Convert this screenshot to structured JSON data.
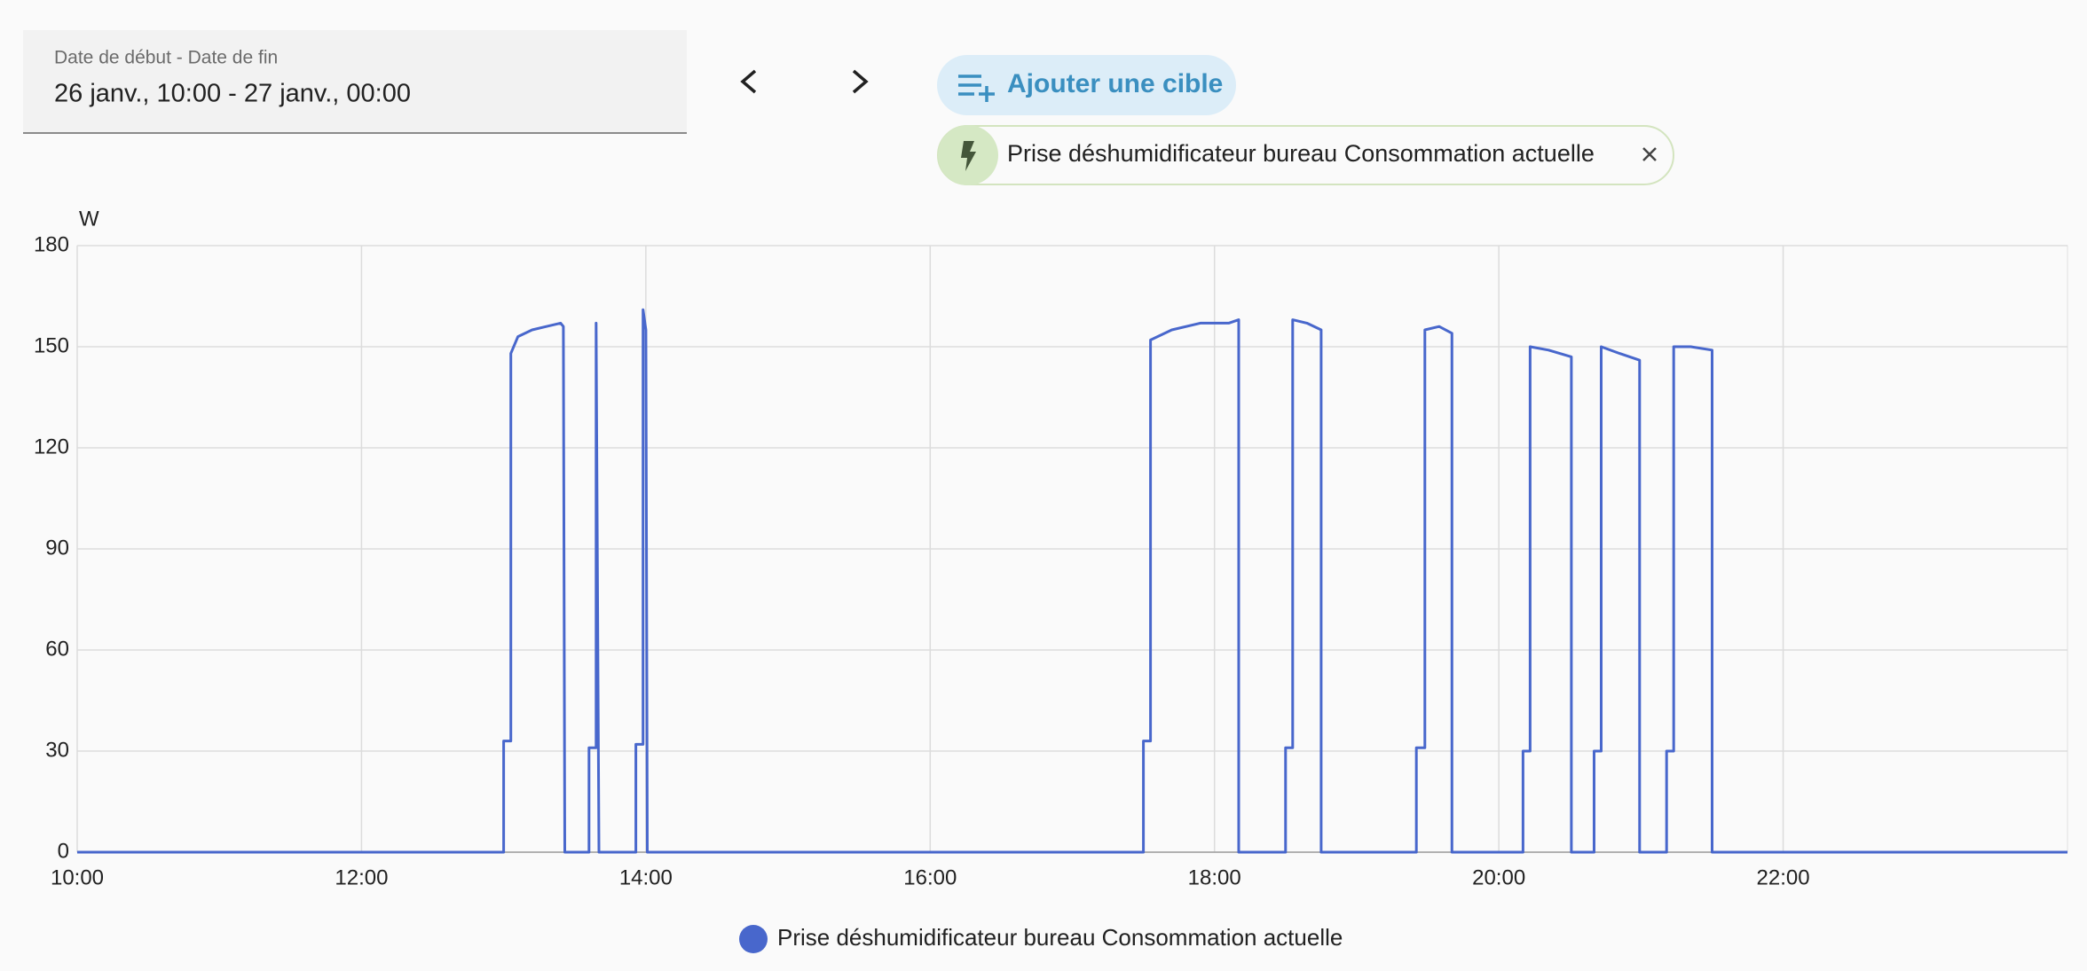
{
  "ui": {
    "date_range": {
      "label": "Date de début - Date de fin",
      "value": "26 janv., 10:00 - 27 janv., 00:00"
    },
    "add_target": "Ajouter une cible",
    "target_chip": "Prise déshumidificateur bureau Consommation actuelle"
  },
  "chart_data": {
    "type": "line",
    "y_label": "W",
    "x": [
      10,
      13.0,
      13.0,
      13.05,
      13.05,
      13.1,
      13.2,
      13.3,
      13.4,
      13.42,
      13.43,
      13.6,
      13.6,
      13.65,
      13.65,
      13.67,
      13.93,
      13.93,
      13.98,
      13.98,
      14.0,
      14.01,
      17.5,
      17.5,
      17.55,
      17.55,
      17.7,
      17.9,
      18.1,
      18.17,
      18.17,
      18.5,
      18.5,
      18.55,
      18.55,
      18.65,
      18.75,
      18.75,
      19.42,
      19.42,
      19.48,
      19.48,
      19.58,
      19.67,
      19.67,
      20.17,
      20.17,
      20.22,
      20.22,
      20.35,
      20.51,
      20.51,
      20.67,
      20.67,
      20.72,
      20.72,
      20.85,
      20.99,
      20.99,
      21.18,
      21.18,
      21.23,
      21.23,
      21.35,
      21.5,
      21.5,
      24
    ],
    "series": [
      {
        "name": "Prise déshumidificateur bureau Consommation actuelle",
        "color": "#4867cc",
        "values": [
          0,
          0,
          33,
          33,
          148,
          153,
          155,
          156,
          157,
          156,
          0,
          0,
          31,
          31,
          157,
          0,
          0,
          32,
          32,
          161,
          155,
          0,
          0,
          33,
          33,
          152,
          155,
          157,
          157,
          158,
          0,
          0,
          31,
          31,
          158,
          157,
          155,
          0,
          0,
          31,
          31,
          155,
          156,
          154,
          0,
          0,
          30,
          30,
          150,
          149,
          147,
          0,
          0,
          30,
          30,
          150,
          148,
          146,
          0,
          0,
          30,
          30,
          150,
          150,
          149,
          0,
          0
        ]
      }
    ],
    "xlim": [
      10,
      24
    ],
    "xticks": [
      {
        "value": 10,
        "label": "10:00"
      },
      {
        "value": 12,
        "label": "12:00"
      },
      {
        "value": 14,
        "label": "14:00"
      },
      {
        "value": 16,
        "label": "16:00"
      },
      {
        "value": 18,
        "label": "18:00"
      },
      {
        "value": 20,
        "label": "20:00"
      },
      {
        "value": 22,
        "label": "22:00"
      }
    ],
    "ylim": [
      0,
      180
    ],
    "yticks": [
      0,
      30,
      60,
      90,
      120,
      150,
      180
    ],
    "grid": true
  }
}
